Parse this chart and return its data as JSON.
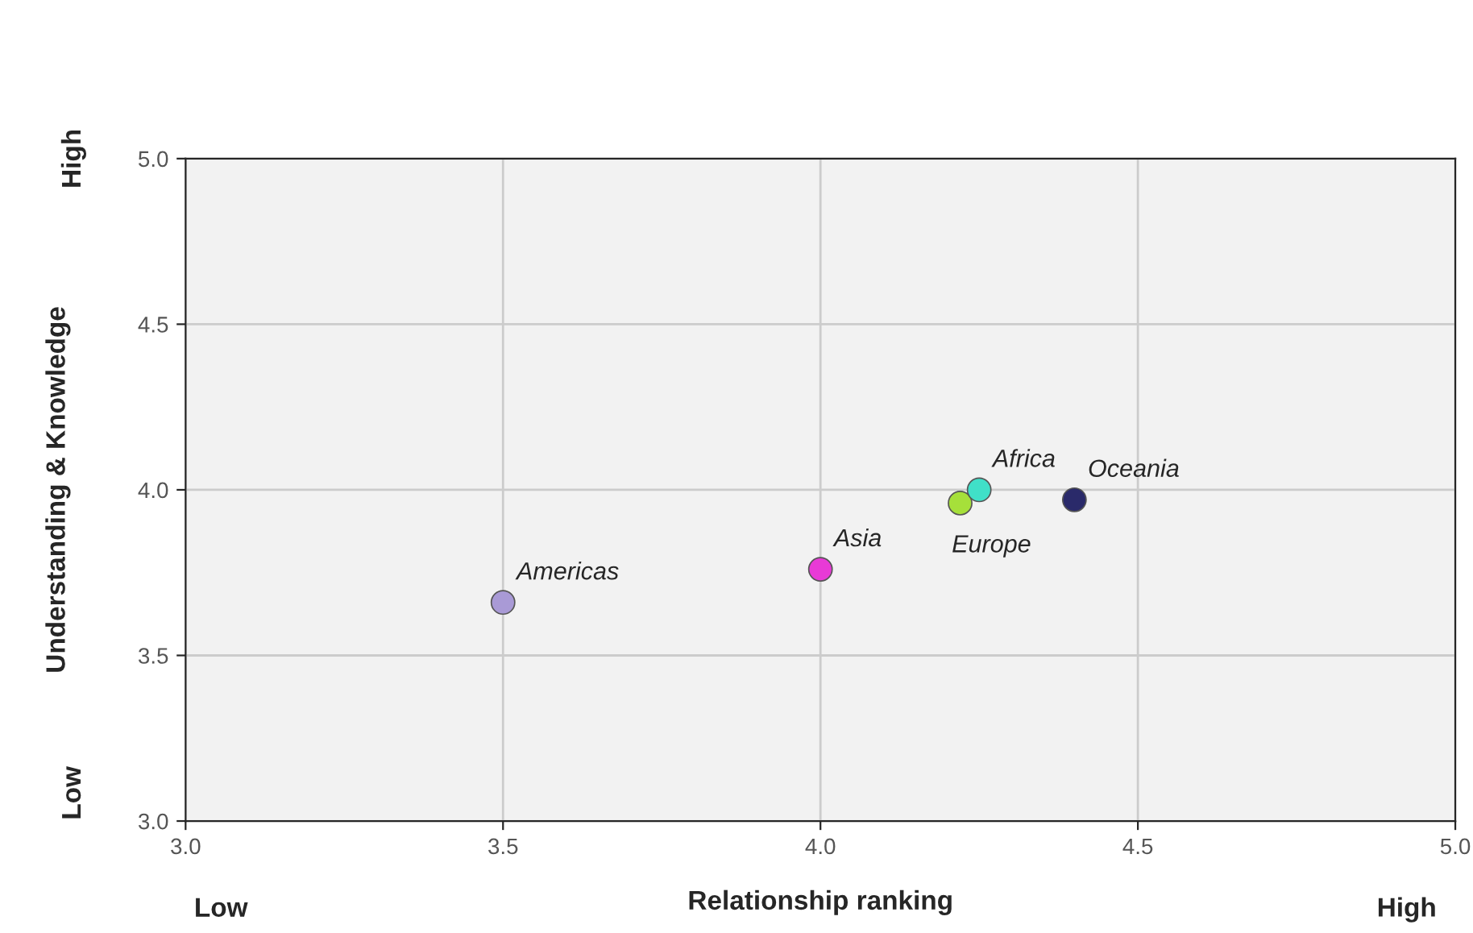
{
  "chart_data": {
    "type": "scatter",
    "xlabel": "Relationship ranking",
    "ylabel": "Understanding & Knowledge",
    "xlim": [
      3.0,
      5.0
    ],
    "ylim": [
      3.0,
      5.0
    ],
    "xticks": [
      {
        "value": 3.0,
        "label": "3.0"
      },
      {
        "value": 3.5,
        "label": "3.5"
      },
      {
        "value": 4.0,
        "label": "4.0"
      },
      {
        "value": 4.5,
        "label": "4.5"
      },
      {
        "value": 5.0,
        "label": "5.0"
      }
    ],
    "yticks": [
      {
        "value": 3.0,
        "label": "3.0"
      },
      {
        "value": 3.5,
        "label": "3.5"
      },
      {
        "value": 4.0,
        "label": "4.0"
      },
      {
        "value": 4.5,
        "label": "4.5"
      },
      {
        "value": 5.0,
        "label": "5.0"
      }
    ],
    "grid": true,
    "legend": false,
    "marker": "circle",
    "series": [
      {
        "name": "Americas",
        "color": "#a99ad6",
        "x": [
          3.5
        ],
        "values": [
          3.66
        ]
      },
      {
        "name": "Asia",
        "color": "#e83ad6",
        "x": [
          4.0
        ],
        "values": [
          3.76
        ]
      },
      {
        "name": "Europe",
        "color": "#a6e03a",
        "x": [
          4.22
        ],
        "values": [
          3.96
        ]
      },
      {
        "name": "Africa",
        "color": "#40e0c8",
        "x": [
          4.25
        ],
        "values": [
          4.0
        ]
      },
      {
        "name": "Oceania",
        "color": "#2a2a6a",
        "x": [
          4.4
        ],
        "values": [
          3.97
        ]
      }
    ],
    "annotations": [
      "Low",
      "High",
      "Low",
      "High"
    ]
  }
}
